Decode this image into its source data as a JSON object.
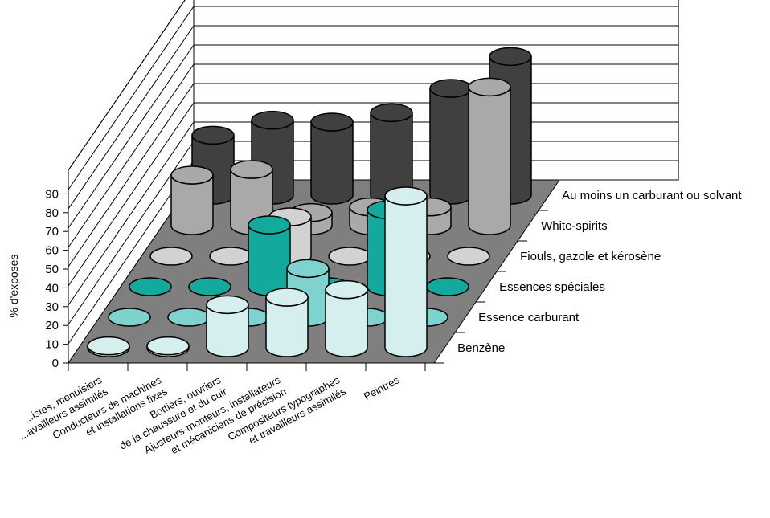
{
  "chart_data": {
    "type": "bar",
    "variant": "3d-cylinder",
    "ylabel": "% d'exposés",
    "ylim": [
      0,
      90
    ],
    "yticks": [
      "0",
      "10",
      "20",
      "30",
      "40",
      "50",
      "60",
      "70",
      "80",
      "90"
    ],
    "categories": [
      [
        "...istes, menuisiers",
        "...availleurs assimilés"
      ],
      [
        "Conducteurs de machines",
        "et installations fixes"
      ],
      [
        "Bottiers, ouvriers",
        "de la chaussure et du cuir"
      ],
      [
        "Ajusteurs-monteurs, installateurs",
        "et mécaniciens de précision"
      ],
      [
        "Compositeurs typographes",
        "et travailleurs assimilés"
      ],
      [
        "Peintres"
      ]
    ],
    "series": [
      {
        "name": "Benzène",
        "values": [
          1,
          1,
          23,
          27,
          31,
          81
        ],
        "color": "#d5eeee"
      },
      {
        "name": "Essence carburant",
        "values": [
          0,
          0,
          0,
          26,
          0,
          0
        ],
        "color": "#7fd3cf"
      },
      {
        "name": "Essences spéciales",
        "values": [
          0,
          0,
          33,
          0,
          41,
          0
        ],
        "color": "#13a99d"
      },
      {
        "name": "Fiouls, gazole et kérosène",
        "values": [
          0,
          0,
          21,
          0,
          0,
          0
        ],
        "color": "#d2d2d2"
      },
      {
        "name": "White-spirits",
        "values": [
          27,
          30,
          7,
          10,
          10,
          74
        ],
        "color": "#a9a9a9"
      },
      {
        "name": "Au moins un carburant ou solvant",
        "values": [
          32,
          40,
          39,
          44,
          57,
          74
        ],
        "color": "#404040"
      }
    ],
    "grid": true,
    "legend": "right (series labels along depth axis)"
  }
}
